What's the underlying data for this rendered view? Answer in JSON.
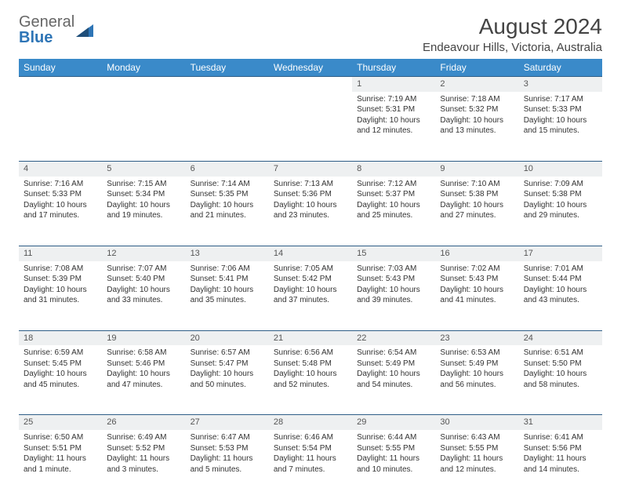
{
  "logo": {
    "part1": "General",
    "part2": "Blue"
  },
  "title": "August 2024",
  "location": "Endeavour Hills, Victoria, Australia",
  "colors": {
    "header_bg": "#3a8ac9",
    "header_text": "#ffffff",
    "daynum_bg": "#eef0f1",
    "border": "#2e5e87",
    "text": "#333333",
    "logo_blue": "#2e75b6"
  },
  "weekdays": [
    "Sunday",
    "Monday",
    "Tuesday",
    "Wednesday",
    "Thursday",
    "Friday",
    "Saturday"
  ],
  "weeks": [
    {
      "nums": [
        "",
        "",
        "",
        "",
        "1",
        "2",
        "3"
      ],
      "cells": [
        null,
        null,
        null,
        null,
        {
          "sunrise": "Sunrise: 7:19 AM",
          "sunset": "Sunset: 5:31 PM",
          "daylight": "Daylight: 10 hours and 12 minutes."
        },
        {
          "sunrise": "Sunrise: 7:18 AM",
          "sunset": "Sunset: 5:32 PM",
          "daylight": "Daylight: 10 hours and 13 minutes."
        },
        {
          "sunrise": "Sunrise: 7:17 AM",
          "sunset": "Sunset: 5:33 PM",
          "daylight": "Daylight: 10 hours and 15 minutes."
        }
      ]
    },
    {
      "nums": [
        "4",
        "5",
        "6",
        "7",
        "8",
        "9",
        "10"
      ],
      "cells": [
        {
          "sunrise": "Sunrise: 7:16 AM",
          "sunset": "Sunset: 5:33 PM",
          "daylight": "Daylight: 10 hours and 17 minutes."
        },
        {
          "sunrise": "Sunrise: 7:15 AM",
          "sunset": "Sunset: 5:34 PM",
          "daylight": "Daylight: 10 hours and 19 minutes."
        },
        {
          "sunrise": "Sunrise: 7:14 AM",
          "sunset": "Sunset: 5:35 PM",
          "daylight": "Daylight: 10 hours and 21 minutes."
        },
        {
          "sunrise": "Sunrise: 7:13 AM",
          "sunset": "Sunset: 5:36 PM",
          "daylight": "Daylight: 10 hours and 23 minutes."
        },
        {
          "sunrise": "Sunrise: 7:12 AM",
          "sunset": "Sunset: 5:37 PM",
          "daylight": "Daylight: 10 hours and 25 minutes."
        },
        {
          "sunrise": "Sunrise: 7:10 AM",
          "sunset": "Sunset: 5:38 PM",
          "daylight": "Daylight: 10 hours and 27 minutes."
        },
        {
          "sunrise": "Sunrise: 7:09 AM",
          "sunset": "Sunset: 5:38 PM",
          "daylight": "Daylight: 10 hours and 29 minutes."
        }
      ]
    },
    {
      "nums": [
        "11",
        "12",
        "13",
        "14",
        "15",
        "16",
        "17"
      ],
      "cells": [
        {
          "sunrise": "Sunrise: 7:08 AM",
          "sunset": "Sunset: 5:39 PM",
          "daylight": "Daylight: 10 hours and 31 minutes."
        },
        {
          "sunrise": "Sunrise: 7:07 AM",
          "sunset": "Sunset: 5:40 PM",
          "daylight": "Daylight: 10 hours and 33 minutes."
        },
        {
          "sunrise": "Sunrise: 7:06 AM",
          "sunset": "Sunset: 5:41 PM",
          "daylight": "Daylight: 10 hours and 35 minutes."
        },
        {
          "sunrise": "Sunrise: 7:05 AM",
          "sunset": "Sunset: 5:42 PM",
          "daylight": "Daylight: 10 hours and 37 minutes."
        },
        {
          "sunrise": "Sunrise: 7:03 AM",
          "sunset": "Sunset: 5:43 PM",
          "daylight": "Daylight: 10 hours and 39 minutes."
        },
        {
          "sunrise": "Sunrise: 7:02 AM",
          "sunset": "Sunset: 5:43 PM",
          "daylight": "Daylight: 10 hours and 41 minutes."
        },
        {
          "sunrise": "Sunrise: 7:01 AM",
          "sunset": "Sunset: 5:44 PM",
          "daylight": "Daylight: 10 hours and 43 minutes."
        }
      ]
    },
    {
      "nums": [
        "18",
        "19",
        "20",
        "21",
        "22",
        "23",
        "24"
      ],
      "cells": [
        {
          "sunrise": "Sunrise: 6:59 AM",
          "sunset": "Sunset: 5:45 PM",
          "daylight": "Daylight: 10 hours and 45 minutes."
        },
        {
          "sunrise": "Sunrise: 6:58 AM",
          "sunset": "Sunset: 5:46 PM",
          "daylight": "Daylight: 10 hours and 47 minutes."
        },
        {
          "sunrise": "Sunrise: 6:57 AM",
          "sunset": "Sunset: 5:47 PM",
          "daylight": "Daylight: 10 hours and 50 minutes."
        },
        {
          "sunrise": "Sunrise: 6:56 AM",
          "sunset": "Sunset: 5:48 PM",
          "daylight": "Daylight: 10 hours and 52 minutes."
        },
        {
          "sunrise": "Sunrise: 6:54 AM",
          "sunset": "Sunset: 5:49 PM",
          "daylight": "Daylight: 10 hours and 54 minutes."
        },
        {
          "sunrise": "Sunrise: 6:53 AM",
          "sunset": "Sunset: 5:49 PM",
          "daylight": "Daylight: 10 hours and 56 minutes."
        },
        {
          "sunrise": "Sunrise: 6:51 AM",
          "sunset": "Sunset: 5:50 PM",
          "daylight": "Daylight: 10 hours and 58 minutes."
        }
      ]
    },
    {
      "nums": [
        "25",
        "26",
        "27",
        "28",
        "29",
        "30",
        "31"
      ],
      "cells": [
        {
          "sunrise": "Sunrise: 6:50 AM",
          "sunset": "Sunset: 5:51 PM",
          "daylight": "Daylight: 11 hours and 1 minute."
        },
        {
          "sunrise": "Sunrise: 6:49 AM",
          "sunset": "Sunset: 5:52 PM",
          "daylight": "Daylight: 11 hours and 3 minutes."
        },
        {
          "sunrise": "Sunrise: 6:47 AM",
          "sunset": "Sunset: 5:53 PM",
          "daylight": "Daylight: 11 hours and 5 minutes."
        },
        {
          "sunrise": "Sunrise: 6:46 AM",
          "sunset": "Sunset: 5:54 PM",
          "daylight": "Daylight: 11 hours and 7 minutes."
        },
        {
          "sunrise": "Sunrise: 6:44 AM",
          "sunset": "Sunset: 5:55 PM",
          "daylight": "Daylight: 11 hours and 10 minutes."
        },
        {
          "sunrise": "Sunrise: 6:43 AM",
          "sunset": "Sunset: 5:55 PM",
          "daylight": "Daylight: 11 hours and 12 minutes."
        },
        {
          "sunrise": "Sunrise: 6:41 AM",
          "sunset": "Sunset: 5:56 PM",
          "daylight": "Daylight: 11 hours and 14 minutes."
        }
      ]
    }
  ]
}
